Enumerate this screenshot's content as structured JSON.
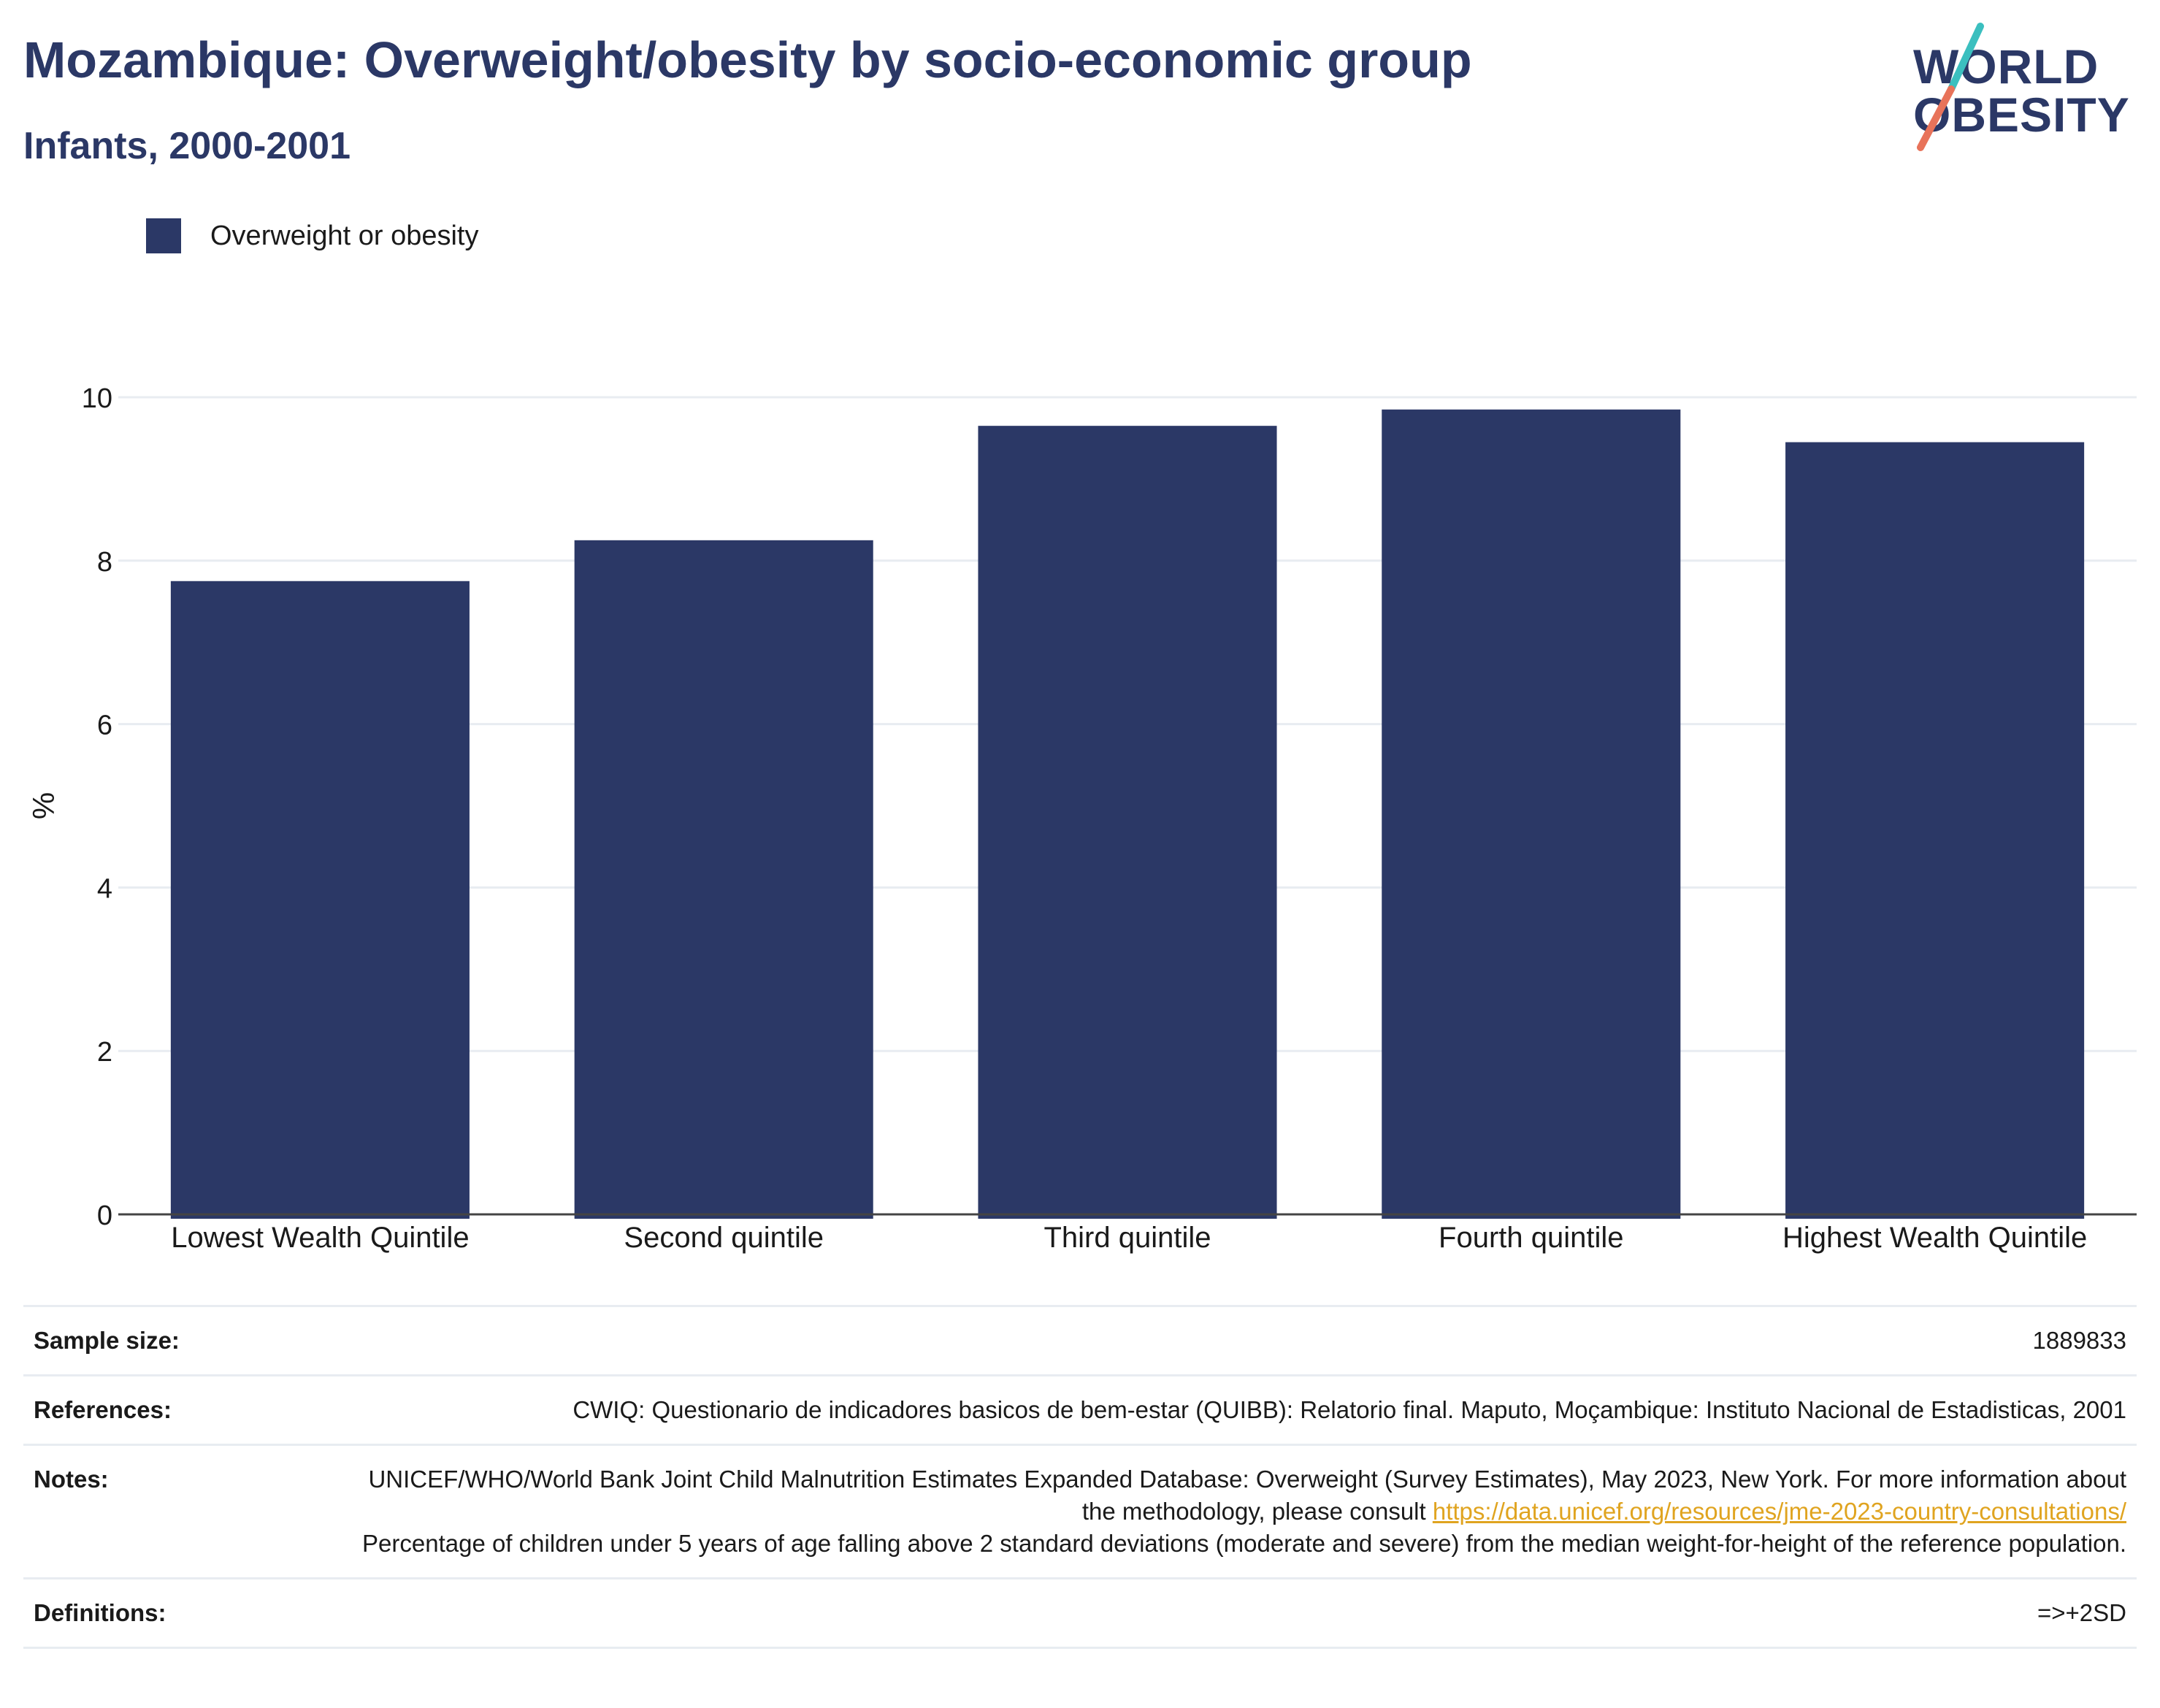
{
  "header": {
    "title": "Mozambique: Overweight/obesity by socio-economic group",
    "subtitle": "Infants, 2000-2001"
  },
  "logo": {
    "line1": "WORLD",
    "line2": "OBESITY",
    "colors": [
      "#2b3866",
      "#3bbfbf",
      "#e8735a"
    ]
  },
  "legend": {
    "label": "Overweight or obesity",
    "color": "#2b3866"
  },
  "chart_data": {
    "type": "bar",
    "categories": [
      "Lowest Wealth Quintile",
      "Second quintile",
      "Third quintile",
      "Fourth quintile",
      "Highest Wealth Quintile"
    ],
    "series": [
      {
        "name": "Overweight or obesity",
        "values": [
          7.75,
          8.25,
          9.65,
          9.85,
          9.45
        ],
        "color": "#2b3866"
      }
    ],
    "ylabel": "%",
    "ylim": [
      0,
      10
    ],
    "yticks": [
      0,
      2,
      4,
      6,
      8,
      10
    ],
    "grid": true,
    "legend_position": "top-left"
  },
  "info": {
    "sample_size_label": "Sample size:",
    "sample_size_value": "1889833",
    "references_label": "References:",
    "references_value": "CWIQ: Questionario de indicadores basicos de bem-estar (QUIBB): Relatorio final. Maputo, Moçambique: Instituto Nacional de Estadisticas, 2001",
    "notes_label": "Notes:",
    "notes_text1": "UNICEF/WHO/World Bank Joint Child Malnutrition Estimates Expanded Database: Overweight (Survey Estimates), May 2023, New York. For more information about the methodology, please consult ",
    "notes_link": "https://data.unicef.org/resources/jme-2023-country-consultations/",
    "notes_text2": "Percentage of children under 5 years of age falling above 2 standard deviations (moderate and severe) from the median weight-for-height of the reference population.",
    "definitions_label": "Definitions:",
    "definitions_value": "=>+2SD"
  }
}
